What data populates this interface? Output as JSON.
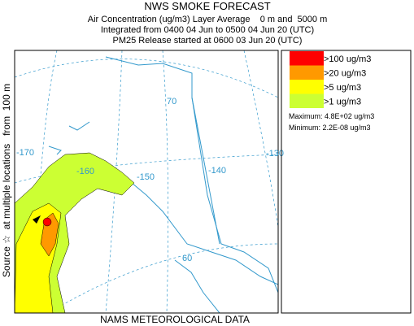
{
  "header": {
    "title": "NWS SMOKE FORECAST",
    "lines": [
      "Air Concentration (ug/m3) Layer Average    0 m and  5000 m",
      "Integrated from 0400 04 Jun to 0500 04 Jun 20 (UTC)",
      "PM25 Release started at 0600 03 Jun 20 (UTC)"
    ]
  },
  "side_label": "Source ☆  at multiple locations   from  100 m",
  "map": {
    "labels": [
      "70",
      "-170",
      "-160",
      "-150",
      "-140",
      "-130",
      "60"
    ]
  },
  "legend": {
    "entries": [
      {
        "label": ">100 ug/m3",
        "color": "#ff0000"
      },
      {
        "label": ">20 ug/m3",
        "color": "#ff9900"
      },
      {
        "label": ">5 ug/m3",
        "color": "#ffff00"
      },
      {
        "label": ">1 ug/m3",
        "color": "#ccff33"
      }
    ],
    "maximum": "Maximum: 4.8E+02 ug/m3",
    "minimum": "Minimum: 2.2E-08 ug/m3"
  },
  "footer": "NAMS METEOROLOGICAL DATA"
}
